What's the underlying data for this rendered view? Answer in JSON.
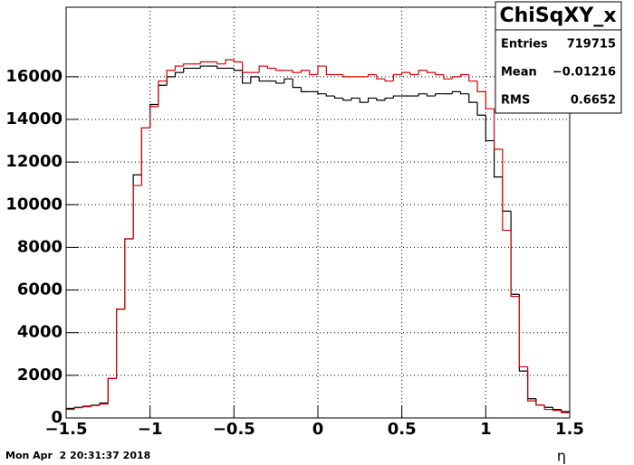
{
  "chart_data": {
    "type": "histogram",
    "bins": [
      -1.5,
      -1.45,
      -1.4,
      -1.35,
      -1.3,
      -1.25,
      -1.2,
      -1.15,
      -1.1,
      -1.05,
      -1,
      -0.95,
      -0.9,
      -0.85,
      -0.8,
      -0.75,
      -0.7,
      -0.65,
      -0.6,
      -0.55,
      -0.5,
      -0.45,
      -0.4,
      -0.35,
      -0.3,
      -0.25,
      -0.2,
      -0.15,
      -0.1,
      -0.05,
      0,
      0.05,
      0.1,
      0.15,
      0.2,
      0.25,
      0.3,
      0.35,
      0.4,
      0.45,
      0.5,
      0.55,
      0.6,
      0.65,
      0.7,
      0.75,
      0.8,
      0.85,
      0.9,
      0.95,
      1,
      1.05,
      1.1,
      1.15,
      1.2,
      1.25,
      1.3,
      1.35,
      1.4,
      1.45,
      1.5
    ],
    "series": [
      {
        "color": "#000000",
        "values": [
          450,
          500,
          550,
          600,
          700,
          1850,
          5100,
          8400,
          11400,
          13600,
          14700,
          15600,
          16000,
          16200,
          16400,
          16400,
          16500,
          16500,
          16400,
          16400,
          16300,
          15700,
          16000,
          15800,
          15800,
          15700,
          15900,
          15500,
          15300,
          15300,
          15200,
          15100,
          15000,
          14900,
          15000,
          14800,
          15000,
          14900,
          15000,
          15100,
          15100,
          15100,
          15200,
          15100,
          15200,
          15200,
          15300,
          15200,
          14800,
          14200,
          13000,
          11300,
          9700,
          5800,
          2200,
          900,
          600,
          500,
          400,
          300
        ]
      },
      {
        "color": "#d40000",
        "values": [
          400,
          480,
          530,
          580,
          650,
          1850,
          5100,
          8400,
          10900,
          13600,
          14600,
          15800,
          16300,
          16500,
          16600,
          16600,
          16700,
          16700,
          16600,
          16800,
          16700,
          16200,
          16200,
          16500,
          16400,
          16300,
          16300,
          16200,
          16300,
          16100,
          16500,
          16100,
          16100,
          16000,
          16000,
          16000,
          16100,
          15900,
          15800,
          16100,
          16200,
          16100,
          16300,
          16200,
          16100,
          15900,
          16000,
          16100,
          15800,
          15300,
          14500,
          12600,
          8800,
          5700,
          2400,
          800,
          600,
          400,
          350,
          250
        ]
      }
    ],
    "xlim": [
      -1.5,
      1.5
    ],
    "ylim": [
      0,
      19260
    ],
    "xticks": [
      {
        "value": -1.5,
        "label": "−1.5"
      },
      {
        "value": -1,
        "label": "−1"
      },
      {
        "value": -0.5,
        "label": "−0.5"
      },
      0,
      0.5,
      1,
      1.5
    ],
    "yticks": [
      0,
      2000,
      4000,
      6000,
      8000,
      10000,
      12000,
      14000,
      16000
    ],
    "x_label": "η",
    "grid": true,
    "stats": {
      "title": "ChiSqXY_x",
      "rows": [
        [
          "Entries",
          "719715"
        ],
        [
          "Mean",
          "−0.01216"
        ],
        [
          "RMS",
          "0.6652"
        ]
      ]
    },
    "timestamp": "Mon Apr  2 20:31:37 2018"
  }
}
